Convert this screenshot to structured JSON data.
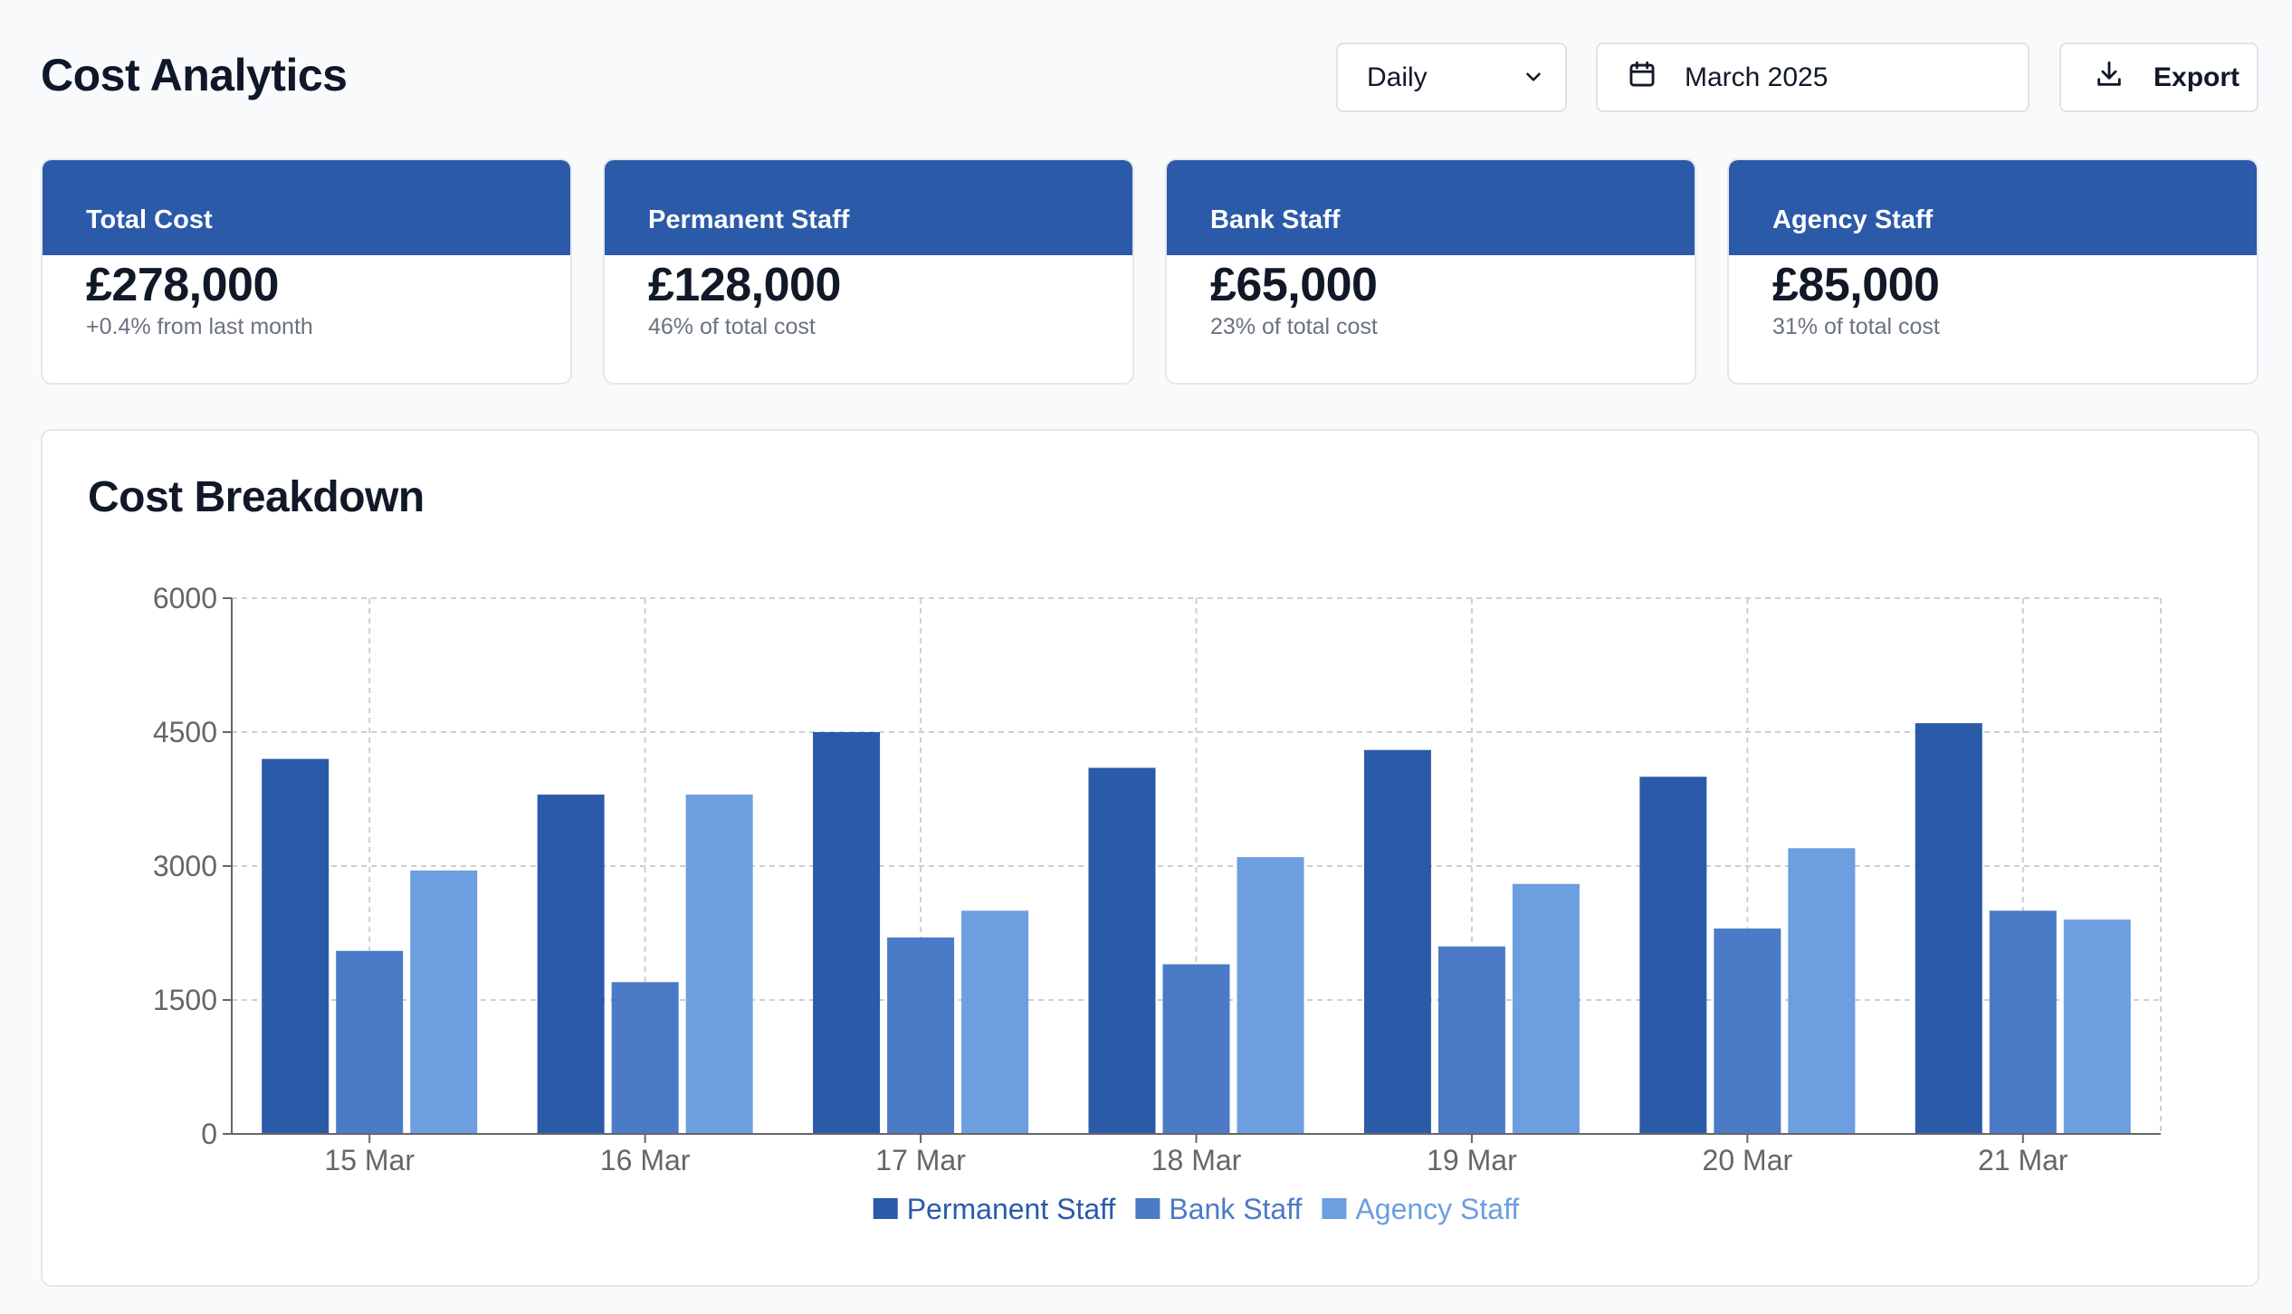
{
  "page": {
    "title": "Cost Analytics"
  },
  "controls": {
    "period": {
      "selected": "Daily"
    },
    "date": {
      "label": "March 2025"
    },
    "export": {
      "label": "Export"
    }
  },
  "cards": [
    {
      "title": "Total Cost",
      "value": "£278,000",
      "sub": "+0.4% from last month"
    },
    {
      "title": "Permanent Staff",
      "value": "£128,000",
      "sub": "46% of total cost"
    },
    {
      "title": "Bank Staff",
      "value": "£65,000",
      "sub": "23% of total cost"
    },
    {
      "title": "Agency Staff",
      "value": "£85,000",
      "sub": "31% of total cost"
    }
  ],
  "breakdown": {
    "title": "Cost Breakdown"
  },
  "colors": {
    "accent": "#2b5aa8",
    "permanent": "#2b5aa8",
    "bank": "#4b7bc6",
    "agency": "#6c9ee0"
  },
  "chart_data": {
    "type": "bar",
    "categories": [
      "15 Mar",
      "16 Mar",
      "17 Mar",
      "18 Mar",
      "19 Mar",
      "20 Mar",
      "21 Mar"
    ],
    "series": [
      {
        "name": "Permanent Staff",
        "color": "#2b5aa8",
        "values": [
          4200,
          3800,
          4500,
          4100,
          4300,
          4000,
          4600
        ]
      },
      {
        "name": "Bank Staff",
        "color": "#4b7bc6",
        "values": [
          2050,
          1700,
          2200,
          1900,
          2100,
          2300,
          2500
        ]
      },
      {
        "name": "Agency Staff",
        "color": "#6c9ee0",
        "values": [
          2950,
          3800,
          2500,
          3100,
          2800,
          3200,
          2400
        ]
      }
    ],
    "yticks": [
      0,
      1500,
      3000,
      4500,
      6000
    ],
    "ylim": [
      0,
      6000
    ],
    "grid": true,
    "legend": "bottom-center"
  }
}
